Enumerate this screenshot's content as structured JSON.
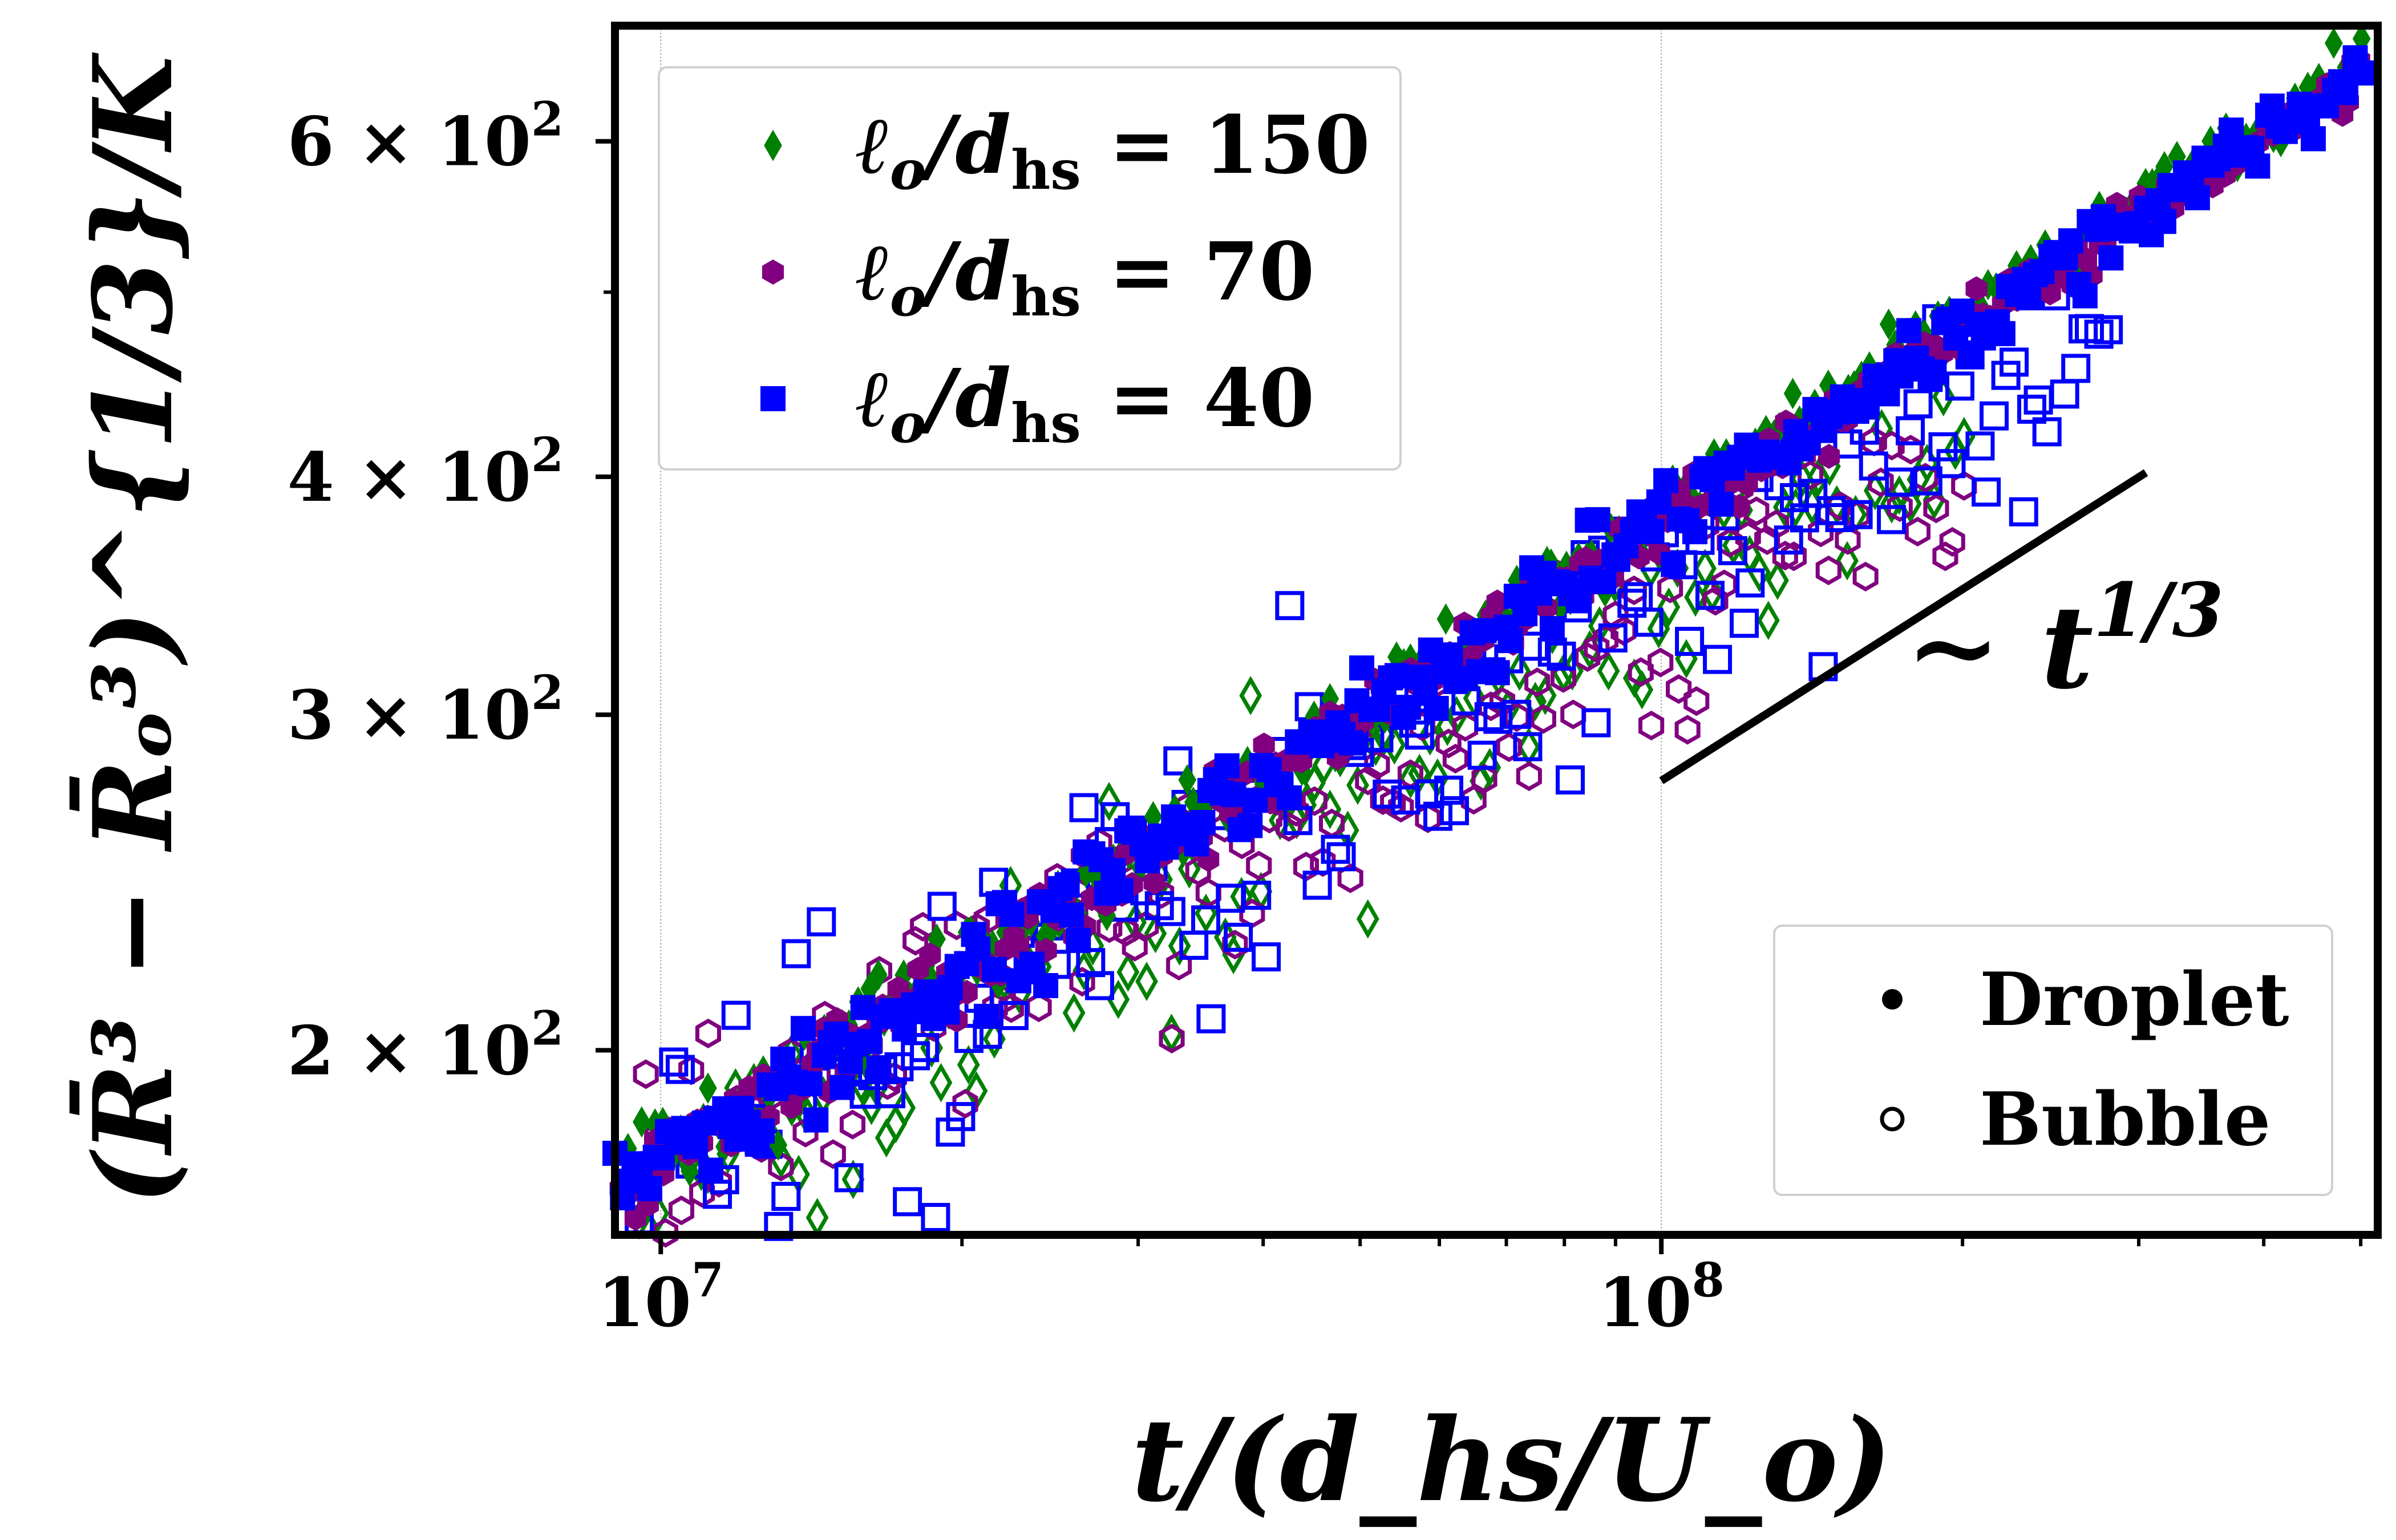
{
  "chart_data": {
    "type": "scatter",
    "title": "",
    "xlabel": "t/(d_hs/U_o)",
    "ylabel": "(R̄³ − R̄ₒ³)^{1/3}/K",
    "x_scale": "log",
    "y_scale": "log",
    "xlim": [
      9000000,
      520000000
    ],
    "ylim": [
      160,
      690
    ],
    "x_ticks": [
      {
        "value": 10000000,
        "base": "10",
        "exp": "7"
      },
      {
        "value": 100000000,
        "base": "10",
        "exp": "8"
      }
    ],
    "y_ticks": [
      {
        "value": 200,
        "text": "2 × 10",
        "exp": "2"
      },
      {
        "value": 300,
        "text": "3 × 10",
        "exp": "2"
      },
      {
        "value": 400,
        "text": "4 × 10",
        "exp": "2"
      },
      {
        "value": 600,
        "text": "6 × 10",
        "exp": "2"
      }
    ],
    "grid_x_major": true,
    "grid_y": false,
    "legend_series": {
      "placement": "top-left",
      "entries": [
        {
          "label_prefix": "ℓ",
          "label_rest": "/d",
          "label_sub": "hs",
          "label_value": "= 150",
          "color": "#008000",
          "marker": "diamond"
        },
        {
          "label_prefix": "ℓ",
          "label_rest": "/d",
          "label_sub": "hs",
          "label_value": "= 70",
          "color": "#800080",
          "marker": "hexagon"
        },
        {
          "label_prefix": "ℓ",
          "label_rest": "/d",
          "label_sub": "hs",
          "label_value": "= 40",
          "color": "#0000ff",
          "marker": "square"
        }
      ]
    },
    "legend_type": {
      "placement": "bottom-right",
      "entries": [
        {
          "label": "Droplet",
          "filled": true
        },
        {
          "label": "Bubble",
          "filled": false
        }
      ]
    },
    "annotation": {
      "text": "∼ t",
      "sup": "1/3",
      "reference_line": {
        "x": [
          100000000,
          305000000
        ],
        "y": [
          277,
          402
        ]
      }
    },
    "series": [
      {
        "name": "ℓ/d = 150",
        "color": "#008000",
        "marker": "diamond",
        "droplet": {
          "x_range": [
            9000000,
            500000000
          ],
          "y_at_start": 170,
          "y_at_end": 660,
          "n": 260,
          "jitter": 0.012
        },
        "bubble": {
          "x_range": [
            9500000,
            200000000
          ],
          "y_at_start": 168,
          "y_at_end": 440,
          "n": 150,
          "jitter": 0.03
        }
      },
      {
        "name": "ℓ/d = 70",
        "color": "#800080",
        "marker": "hexagon",
        "droplet": {
          "x_range": [
            9000000,
            500000000
          ],
          "y_at_start": 168,
          "y_at_end": 650,
          "n": 260,
          "jitter": 0.012
        },
        "bubble": {
          "x_range": [
            9500000,
            200000000
          ],
          "y_at_start": 172,
          "y_at_end": 430,
          "n": 150,
          "jitter": 0.035
        }
      },
      {
        "name": "ℓ/d = 40",
        "color": "#0000ff",
        "marker": "square",
        "droplet": {
          "x_range": [
            9000000,
            500000000
          ],
          "y_at_start": 168,
          "y_at_end": 650,
          "n": 260,
          "jitter": 0.015
        },
        "bubble": {
          "x_range": [
            9500000,
            280000000
          ],
          "y_at_start": 175,
          "y_at_end": 500,
          "n": 170,
          "jitter": 0.045
        }
      }
    ]
  }
}
